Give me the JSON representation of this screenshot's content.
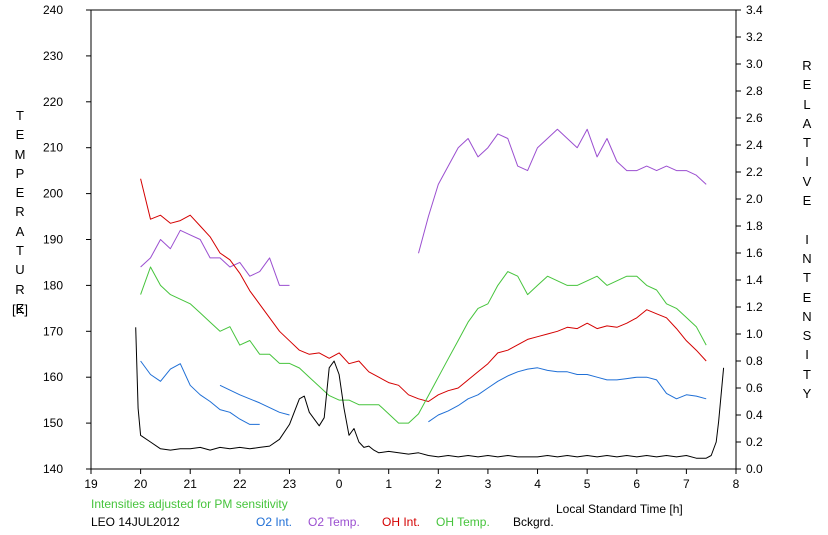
{
  "chart_data": {
    "type": "line",
    "xlabel": "Local Standard Time [h]",
    "ylabel_left": "TEMPERATURE",
    "ylabel_left_unit": "[K]",
    "ylabel_right": "RELATIVE INTENSITY",
    "x_range": [
      19,
      32
    ],
    "x_tick_labels": [
      "19",
      "20",
      "21",
      "22",
      "23",
      "0",
      "1",
      "2",
      "3",
      "4",
      "5",
      "6",
      "7",
      "8"
    ],
    "y_left_range": [
      140,
      240
    ],
    "y_left_ticks": [
      "140",
      "150",
      "160",
      "170",
      "180",
      "190",
      "200",
      "210",
      "220",
      "230",
      "240"
    ],
    "y_right_range": [
      0.0,
      3.4
    ],
    "y_right_ticks": [
      "0.0",
      "0.2",
      "0.4",
      "0.6",
      "0.8",
      "1.0",
      "1.2",
      "1.4",
      "1.6",
      "1.8",
      "2.0",
      "2.2",
      "2.4",
      "2.6",
      "2.8",
      "3.0",
      "3.2",
      "3.4"
    ],
    "grid": false,
    "note": "Intensities adjusted for PM sensitivity",
    "station": "LEO 14JUL2012",
    "series": [
      {
        "name": "O2 Int.",
        "axis": "right",
        "color": "#1f6fd6",
        "x": [
          20.0,
          20.2,
          20.4,
          20.6,
          20.8,
          21.0,
          21.2,
          21.4,
          21.6,
          21.8,
          22.0,
          22.2,
          22.4
        ],
        "y": [
          0.8,
          0.7,
          0.65,
          0.74,
          0.78,
          0.62,
          0.55,
          0.5,
          0.44,
          0.42,
          0.37,
          0.33,
          0.33
        ]
      },
      {
        "name": "O2 Int.",
        "axis": "right",
        "color": "#1f6fd6",
        "x": [
          21.6,
          22.0,
          22.4,
          22.8,
          23.0
        ],
        "y": [
          0.62,
          0.55,
          0.49,
          0.42,
          0.4
        ]
      },
      {
        "name": "O2 Int.",
        "axis": "right",
        "color": "#1f6fd6",
        "x": [
          25.8,
          26.0,
          26.2,
          26.4,
          26.6,
          26.8,
          27.0,
          27.2,
          27.4,
          27.6,
          27.8,
          28.0,
          28.2,
          28.4,
          28.6,
          28.8,
          29.0,
          29.2,
          29.4,
          29.6,
          29.8,
          30.0,
          30.2,
          30.4,
          30.6,
          30.8,
          31.0,
          31.2,
          31.4
        ],
        "y": [
          0.35,
          0.4,
          0.43,
          0.47,
          0.52,
          0.55,
          0.6,
          0.65,
          0.69,
          0.72,
          0.74,
          0.75,
          0.73,
          0.72,
          0.72,
          0.7,
          0.7,
          0.68,
          0.66,
          0.66,
          0.67,
          0.68,
          0.68,
          0.66,
          0.56,
          0.52,
          0.55,
          0.54,
          0.52
        ]
      },
      {
        "name": "O2 Temp.",
        "axis": "left",
        "color": "#9b4fd0",
        "x": [
          20.0,
          20.2,
          20.4,
          20.6,
          20.8,
          21.0,
          21.2,
          21.4,
          21.6,
          21.8,
          22.0,
          22.2,
          22.4,
          22.6,
          22.8,
          23.0
        ],
        "y": [
          184,
          186,
          190,
          188,
          192,
          191,
          190,
          186,
          186,
          184,
          185,
          182,
          183,
          186,
          180,
          180
        ]
      },
      {
        "name": "O2 Temp.",
        "axis": "left",
        "color": "#9b4fd0",
        "x": [
          25.6,
          25.8,
          26.0,
          26.2,
          26.4,
          26.6,
          26.8,
          27.0,
          27.2,
          27.4,
          27.6,
          27.8,
          28.0,
          28.2,
          28.4,
          28.6,
          28.8,
          29.0,
          29.2,
          29.4,
          29.6,
          29.8,
          30.0,
          30.2,
          30.4,
          30.6,
          30.8,
          31.0,
          31.2,
          31.4
        ],
        "y": [
          187,
          195,
          202,
          206,
          210,
          212,
          208,
          210,
          213,
          212,
          206,
          205,
          210,
          212,
          214,
          212,
          210,
          214,
          208,
          212,
          207,
          205,
          205,
          206,
          205,
          206,
          205,
          205,
          204,
          202
        ]
      },
      {
        "name": "OH Int.",
        "axis": "right",
        "color": "#d40000",
        "x": [
          20.0,
          20.2,
          20.4,
          20.6,
          20.8,
          21.0,
          21.2,
          21.4,
          21.6,
          21.8,
          22.0,
          22.2,
          22.4,
          22.6,
          22.8,
          23.0,
          23.2,
          23.4,
          23.6,
          23.8,
          24.0,
          24.2,
          24.4,
          24.6,
          24.8,
          25.0,
          25.2,
          25.4,
          25.6,
          25.8,
          26.0,
          26.2,
          26.4,
          26.6,
          26.8,
          27.0,
          27.2,
          27.4,
          27.6,
          27.8,
          28.0,
          28.2,
          28.4,
          28.6,
          28.8,
          29.0,
          29.2,
          29.4,
          29.6,
          29.8,
          30.0,
          30.2,
          30.4,
          30.6,
          30.8,
          31.0,
          31.2,
          31.4
        ],
        "y": [
          2.15,
          1.85,
          1.88,
          1.82,
          1.84,
          1.88,
          1.8,
          1.72,
          1.6,
          1.55,
          1.45,
          1.32,
          1.22,
          1.12,
          1.02,
          0.95,
          0.88,
          0.85,
          0.86,
          0.82,
          0.86,
          0.78,
          0.8,
          0.72,
          0.68,
          0.64,
          0.62,
          0.55,
          0.52,
          0.5,
          0.55,
          0.58,
          0.6,
          0.66,
          0.72,
          0.78,
          0.86,
          0.88,
          0.92,
          0.96,
          0.98,
          1.0,
          1.02,
          1.05,
          1.04,
          1.08,
          1.04,
          1.06,
          1.05,
          1.08,
          1.12,
          1.18,
          1.15,
          1.12,
          1.04,
          0.95,
          0.88,
          0.8
        ]
      },
      {
        "name": "OH Temp.",
        "axis": "left",
        "color": "#46c43c",
        "x": [
          20.0,
          20.2,
          20.4,
          20.6,
          20.8,
          21.0,
          21.2,
          21.4,
          21.6,
          21.8,
          22.0,
          22.2,
          22.4,
          22.6,
          22.8,
          23.0,
          23.2,
          23.4,
          23.6,
          23.8,
          24.0,
          24.2,
          24.4,
          24.6,
          24.8,
          25.0,
          25.2,
          25.4,
          25.6,
          25.8,
          26.0,
          26.2,
          26.4,
          26.6,
          26.8,
          27.0,
          27.2,
          27.4,
          27.6,
          27.8,
          28.0,
          28.2,
          28.4,
          28.6,
          28.8,
          29.0,
          29.2,
          29.4,
          29.6,
          29.8,
          30.0,
          30.2,
          30.4,
          30.6,
          30.8,
          31.0,
          31.2,
          31.4
        ],
        "y": [
          178,
          184,
          180,
          178,
          177,
          176,
          174,
          172,
          170,
          171,
          167,
          168,
          165,
          165,
          163,
          163,
          162,
          160,
          158,
          156,
          155,
          155,
          154,
          154,
          154,
          152,
          150,
          150,
          152,
          156,
          160,
          164,
          168,
          172,
          175,
          176,
          180,
          183,
          182,
          178,
          180,
          182,
          181,
          180,
          180,
          181,
          182,
          180,
          181,
          182,
          182,
          180,
          179,
          176,
          175,
          173,
          171,
          167
        ]
      },
      {
        "name": "Bckgrd.",
        "axis": "right",
        "color": "#000000",
        "x": [
          19.9,
          19.95,
          20.0,
          20.2,
          20.4,
          20.6,
          20.8,
          21.0,
          21.2,
          21.4,
          21.6,
          21.8,
          22.0,
          22.2,
          22.4,
          22.6,
          22.8,
          23.0,
          23.2,
          23.3,
          23.4,
          23.6,
          23.7,
          23.8,
          23.9,
          24.0,
          24.1,
          24.2,
          24.3,
          24.4,
          24.5,
          24.6,
          24.7,
          24.8,
          25.0,
          25.2,
          25.4,
          25.6,
          25.8,
          26.0,
          26.2,
          26.4,
          26.6,
          26.8,
          27.0,
          27.2,
          27.4,
          27.6,
          27.8,
          28.0,
          28.2,
          28.4,
          28.6,
          28.8,
          29.0,
          29.2,
          29.4,
          29.6,
          29.8,
          30.0,
          30.2,
          30.4,
          30.6,
          30.8,
          31.0,
          31.2,
          31.4,
          31.5,
          31.6,
          31.65,
          31.7,
          31.75
        ],
        "y": [
          1.05,
          0.45,
          0.25,
          0.2,
          0.15,
          0.14,
          0.15,
          0.15,
          0.16,
          0.14,
          0.16,
          0.15,
          0.16,
          0.15,
          0.16,
          0.17,
          0.22,
          0.33,
          0.52,
          0.54,
          0.42,
          0.32,
          0.38,
          0.75,
          0.8,
          0.7,
          0.45,
          0.25,
          0.3,
          0.2,
          0.16,
          0.17,
          0.14,
          0.12,
          0.13,
          0.12,
          0.11,
          0.12,
          0.1,
          0.09,
          0.1,
          0.09,
          0.1,
          0.09,
          0.1,
          0.09,
          0.1,
          0.09,
          0.09,
          0.09,
          0.1,
          0.09,
          0.1,
          0.09,
          0.1,
          0.09,
          0.1,
          0.09,
          0.1,
          0.09,
          0.1,
          0.09,
          0.1,
          0.09,
          0.1,
          0.08,
          0.08,
          0.1,
          0.2,
          0.35,
          0.55,
          0.75
        ]
      }
    ]
  }
}
